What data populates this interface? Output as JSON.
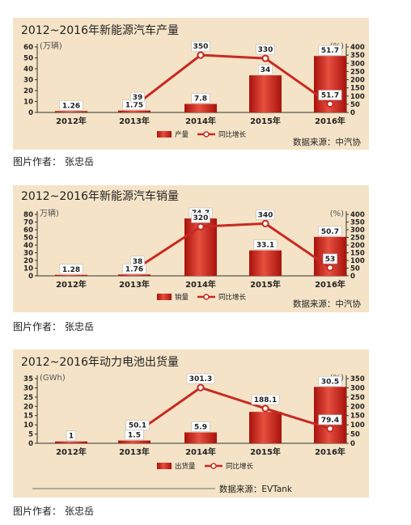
{
  "credit": {
    "prefix": "图片作者：",
    "author": "张忠岳"
  },
  "chart_data": [
    {
      "type": "bar",
      "title": "2012~2016年新能源汽车产量",
      "categories": [
        "2012年",
        "2013年",
        "2014年",
        "2015年",
        "2016年"
      ],
      "left_unit": "(万辆)",
      "right_unit": "(%)",
      "ylim": [
        0,
        60
      ],
      "y_ticks": [
        0,
        10,
        20,
        30,
        40,
        50,
        60
      ],
      "y2lim": [
        0,
        400
      ],
      "y2_ticks": [
        0,
        50,
        100,
        150,
        200,
        250,
        300,
        350,
        400
      ],
      "series": [
        {
          "name": "产量",
          "kind": "bar",
          "axis": "left",
          "values": [
            1.26,
            1.75,
            7.8,
            34,
            51.7
          ],
          "labels": [
            "1.26",
            "1.75",
            "7.8",
            "34",
            "51.7"
          ]
        },
        {
          "name": "同比增长",
          "kind": "line",
          "axis": "right",
          "values": [
            null,
            39,
            350,
            330,
            51.7
          ],
          "labels": [
            "",
            "39",
            "350",
            "330",
            "51.7"
          ]
        }
      ],
      "source": "数据来源：中汽协",
      "grid": false,
      "legend": "bottom"
    },
    {
      "type": "bar",
      "title": "2012~2016年新能源汽车销量",
      "categories": [
        "2012年",
        "2013年",
        "2014年",
        "2015年",
        "2016年"
      ],
      "left_unit": "万辆)",
      "right_unit": "(%)",
      "ylim": [
        0,
        80
      ],
      "y_ticks": [
        0,
        10,
        20,
        30,
        40,
        50,
        60,
        70,
        80
      ],
      "y2lim": [
        0,
        400
      ],
      "y2_ticks": [
        0,
        50,
        100,
        150,
        200,
        250,
        300,
        350,
        400
      ],
      "series": [
        {
          "name": "销量",
          "kind": "bar",
          "axis": "left",
          "values": [
            1.28,
            1.76,
            74.7,
            33.1,
            50.7
          ],
          "labels": [
            "1.28",
            "1.76",
            "74.7",
            "33.1",
            "50.7"
          ]
        },
        {
          "name": "同比增长",
          "kind": "line",
          "axis": "right",
          "values": [
            null,
            38,
            320,
            340,
            53
          ],
          "labels": [
            "",
            "38",
            "320",
            "340",
            "53"
          ]
        }
      ],
      "source": "数据来源：中汽协",
      "grid": false,
      "legend": "bottom"
    },
    {
      "type": "bar",
      "title": "2012~2016年动力电池出货量",
      "categories": [
        "2012年",
        "2013年",
        "2014年",
        "2015年",
        "2016年"
      ],
      "left_unit": "(GWh)",
      "right_unit": "(%)",
      "ylim": [
        0,
        35
      ],
      "y_ticks": [
        0,
        5,
        10,
        15,
        20,
        25,
        30,
        35
      ],
      "y2lim": [
        0,
        350
      ],
      "y2_ticks": [
        0,
        50,
        100,
        150,
        200,
        250,
        300,
        350
      ],
      "series": [
        {
          "name": "出货量",
          "kind": "bar",
          "axis": "left",
          "values": [
            1,
            1.5,
            5.9,
            17,
            30.5
          ],
          "labels": [
            "1",
            "1.5",
            "5.9",
            "",
            "30.5"
          ]
        },
        {
          "name": "同比增长",
          "kind": "line",
          "axis": "right",
          "values": [
            null,
            50.1,
            301.3,
            188.1,
            79.4
          ],
          "labels": [
            "",
            "50.1",
            "301.3",
            "188.1",
            "79.4"
          ]
        }
      ],
      "source": "数据来源：EVTank",
      "grid": false,
      "legend": "bottom"
    }
  ],
  "colors": {
    "panel_bg": "#f4e3c6",
    "bar_light": "#e65040",
    "bar_dark": "#a8120c",
    "line": "#c62a22",
    "text": "#222222",
    "label_bg": "#ffffff"
  }
}
